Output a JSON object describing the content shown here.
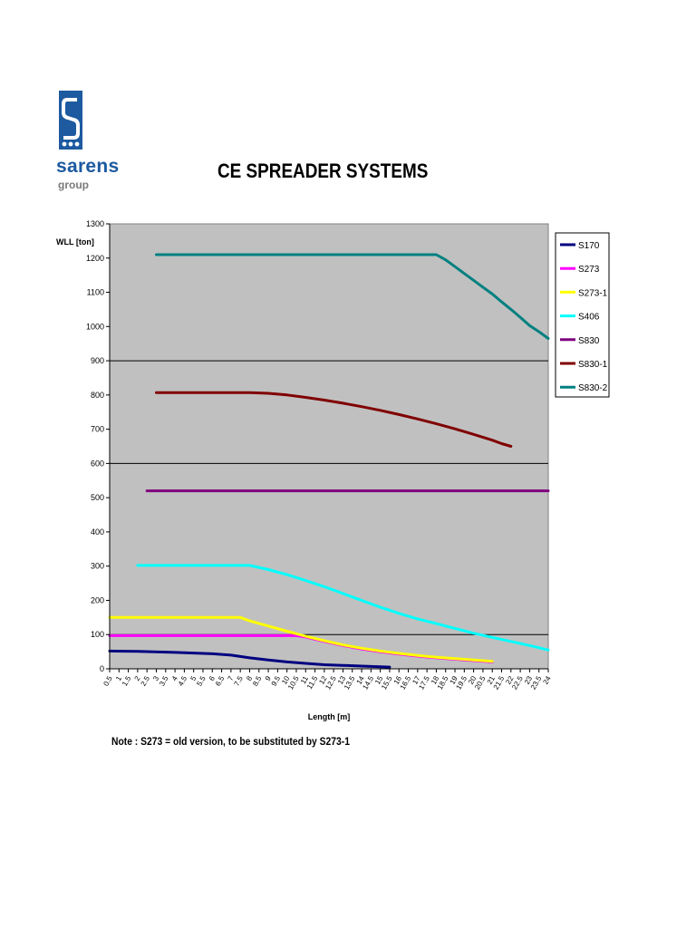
{
  "logo": {
    "word": "sarens",
    "sub": "group",
    "color": "#1d5aa0"
  },
  "title": "CE SPREADER SYSTEMS",
  "note": "Note : S273 = old version, to be substituted by S273-1",
  "chart_data": {
    "type": "line",
    "title": "CE SPREADER SYSTEMS",
    "xlabel": "Length [m]",
    "ylabel": "WLL [ton]",
    "ylim": [
      0,
      1300
    ],
    "yticks": [
      0,
      100,
      200,
      300,
      400,
      500,
      600,
      700,
      800,
      900,
      1000,
      1100,
      1200,
      1300
    ],
    "xlim": [
      0.5,
      24
    ],
    "xticks": [
      "0.5",
      "1",
      "1.5",
      "2",
      "2.5",
      "3",
      "3.5",
      "4",
      "4.5",
      "5",
      "5.5",
      "6",
      "6.5",
      "7",
      "7.5",
      "8",
      "8.5",
      "9",
      "9.5",
      "10",
      "10.5",
      "11",
      "11.5",
      "12",
      "12.5",
      "13",
      "13.5",
      "14",
      "14.5",
      "15",
      "15.5",
      "16",
      "16.5",
      "17",
      "17.5",
      "18",
      "18.5",
      "19",
      "19.5",
      "20",
      "20.5",
      "21",
      "21.5",
      "22",
      "22.5",
      "23",
      "23.5",
      "24"
    ],
    "grid": "horizontal major lines at 100, 600, 900",
    "plot_background": "#c0c0c0",
    "legend_position": "right",
    "series": [
      {
        "name": "S170",
        "color": "#000080",
        "x": [
          0.5,
          2,
          4,
          6,
          7,
          8,
          9,
          10,
          11,
          12,
          13,
          14,
          15,
          15.5
        ],
        "y": [
          52,
          51,
          48,
          44,
          40,
          32,
          26,
          20,
          16,
          12,
          10,
          8,
          6,
          5
        ]
      },
      {
        "name": "S273",
        "color": "#ff00ff",
        "x": [
          0.5,
          1,
          2,
          3,
          4,
          5,
          6,
          7,
          8,
          9,
          10,
          10.5,
          11,
          12,
          13,
          14,
          15,
          16,
          17,
          18,
          19,
          20,
          21
        ],
        "y": [
          97,
          97,
          97,
          97,
          97,
          97,
          97,
          97,
          97,
          97,
          97,
          97,
          93,
          80,
          68,
          58,
          50,
          43,
          37,
          32,
          28,
          24,
          20
        ]
      },
      {
        "name": "S273-1",
        "color": "#ffff00",
        "x": [
          0.5,
          2,
          4,
          6,
          7.5,
          8,
          9,
          10,
          11,
          12,
          13,
          14,
          15,
          16,
          17,
          18,
          19,
          20,
          21
        ],
        "y": [
          150,
          150,
          150,
          150,
          150,
          140,
          125,
          110,
          95,
          82,
          70,
          60,
          52,
          45,
          39,
          34,
          30,
          26,
          22
        ]
      },
      {
        "name": "S406",
        "color": "#00ffff",
        "x": [
          2,
          3,
          4,
          5,
          6,
          7,
          8,
          9,
          10,
          11,
          12,
          13,
          14,
          15,
          16,
          17,
          18,
          19,
          20,
          21,
          22,
          23,
          24
        ],
        "y": [
          302,
          302,
          302,
          302,
          302,
          302,
          302,
          290,
          275,
          258,
          240,
          220,
          200,
          180,
          162,
          146,
          132,
          118,
          104,
          92,
          80,
          68,
          55
        ]
      },
      {
        "name": "S830",
        "color": "#800080",
        "x": [
          2.5,
          24
        ],
        "y": [
          520,
          520
        ]
      },
      {
        "name": "S830-1",
        "color": "#800000",
        "x": [
          3,
          4,
          5,
          6,
          7,
          8,
          9,
          10,
          11,
          12,
          13,
          14,
          15,
          16,
          17,
          18,
          19,
          20,
          21,
          21.5,
          22
        ],
        "y": [
          807,
          807,
          807,
          807,
          807,
          807,
          805,
          800,
          793,
          785,
          776,
          766,
          755,
          743,
          730,
          716,
          701,
          685,
          668,
          658,
          650
        ]
      },
      {
        "name": "S830-2",
        "color": "#008080",
        "x": [
          3,
          5,
          7,
          9,
          11,
          13,
          15,
          17,
          18,
          18.5,
          19,
          19.5,
          20,
          20.5,
          21,
          21.5,
          22,
          22.5,
          23,
          23.5,
          24
        ],
        "y": [
          1210,
          1210,
          1210,
          1210,
          1210,
          1210,
          1210,
          1210,
          1210,
          1195,
          1175,
          1155,
          1135,
          1115,
          1095,
          1072,
          1050,
          1027,
          1003,
          985,
          965
        ]
      }
    ]
  }
}
